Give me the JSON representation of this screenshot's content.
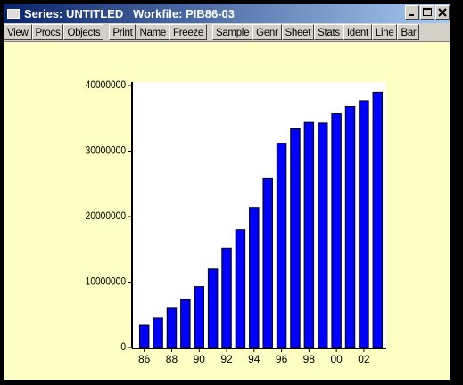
{
  "window": {
    "title": "Series: UNTITLED   Workfile: PIB86-03",
    "toolbar": [
      [
        "View",
        "Procs",
        "Objects"
      ],
      [
        "Print",
        "Name",
        "Freeze"
      ],
      [
        "Sample",
        "Genr",
        "Sheet",
        "Stats",
        "Ident",
        "Line",
        "Bar"
      ]
    ]
  },
  "chart_data": {
    "type": "bar",
    "categories": [
      "86",
      null,
      "88",
      null,
      "90",
      null,
      "92",
      null,
      "94",
      null,
      "96",
      null,
      "98",
      null,
      "00",
      null,
      "02",
      null
    ],
    "values": [
      3400000,
      4500000,
      6000000,
      7300000,
      9300000,
      12000000,
      15200000,
      18000000,
      21400000,
      25800000,
      31200000,
      33400000,
      34400000,
      34300000,
      35700000,
      36800000,
      37700000,
      39000000
    ],
    "color": "#0000ff",
    "ylim": [
      0,
      40000000
    ],
    "yticks": [
      0,
      10000000,
      20000000,
      30000000,
      40000000
    ]
  }
}
